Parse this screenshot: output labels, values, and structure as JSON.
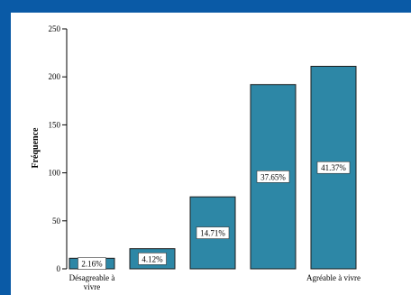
{
  "chart_data": {
    "type": "bar",
    "ylabel": "Fréquence",
    "ylim": [
      0,
      250
    ],
    "yticks": [
      0,
      50,
      100,
      150,
      200,
      250
    ],
    "categories": [
      "Désagreable à vivre",
      "",
      "",
      "",
      "Agréable à vivre"
    ],
    "category_label_lines": [
      [
        "Désagreable à",
        "vivre"
      ],
      [],
      [],
      [],
      [
        "Agréable à vivre"
      ]
    ],
    "values": [
      11,
      21,
      75,
      192,
      211
    ],
    "data_labels": [
      "2.16%",
      "4.12%",
      "14.71%",
      "37.65%",
      "41.37%"
    ],
    "bar_color": "#2d87a6",
    "bar_stroke": "#1c1c1c",
    "grid": false
  }
}
